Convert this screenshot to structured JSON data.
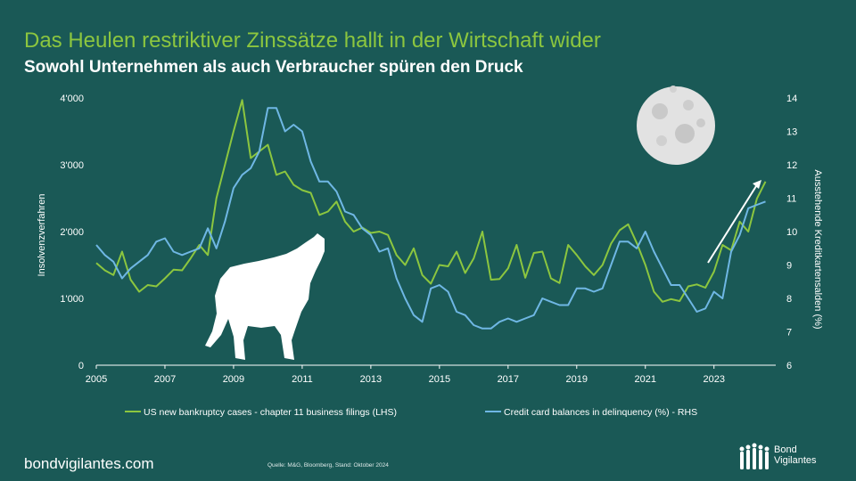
{
  "title": "Das Heulen restriktiver Zinssätze hallt in der Wirtschaft wider",
  "subtitle": "Sowohl Unternehmen als auch Verbraucher spüren den Druck",
  "footer": {
    "url": "bondvigilantes.com",
    "source": "Quelle: M&G, Bloomberg, Stand: Oktober 2024",
    "logo_line1": "Bond",
    "logo_line2": "Vigilantes"
  },
  "icons": [
    "wolf-icon",
    "moon-icon",
    "trend-arrow-icon",
    "logo-people-icon"
  ],
  "colors": {
    "background": "#1a5956",
    "green": "#8cc63f",
    "blue": "#6fb7e4"
  },
  "chart_data": {
    "type": "line",
    "xlabel": "",
    "ylabel_left": "Insolvenzverfahren",
    "ylabel_right": "Ausstehende Kreditkartensalden (%)",
    "ylim_left": [
      0,
      4000
    ],
    "ylim_right": [
      6,
      14
    ],
    "xlim": [
      2005,
      2024.8
    ],
    "x_ticks": [
      "2005",
      "2007",
      "2009",
      "2011",
      "2013",
      "2015",
      "2017",
      "2019",
      "2021",
      "2023"
    ],
    "y_ticks_left": [
      "0",
      "1'000",
      "2'000",
      "3'000",
      "4'000"
    ],
    "y_ticks_right": [
      "6",
      "7",
      "8",
      "9",
      "10",
      "11",
      "12",
      "13",
      "14"
    ],
    "series": [
      {
        "name": "US new bankruptcy cases - chapter 11 business filings (LHS)",
        "axis": "left",
        "x": [
          2005.0,
          2005.25,
          2005.5,
          2005.75,
          2006.0,
          2006.25,
          2006.5,
          2006.75,
          2007.0,
          2007.25,
          2007.5,
          2007.75,
          2008.0,
          2008.25,
          2008.5,
          2008.75,
          2009.0,
          2009.25,
          2009.5,
          2009.75,
          2010.0,
          2010.25,
          2010.5,
          2010.75,
          2011.0,
          2011.25,
          2011.5,
          2011.75,
          2012.0,
          2012.25,
          2012.5,
          2012.75,
          2013.0,
          2013.25,
          2013.5,
          2013.75,
          2014.0,
          2014.25,
          2014.5,
          2014.75,
          2015.0,
          2015.25,
          2015.5,
          2015.75,
          2016.0,
          2016.25,
          2016.5,
          2016.75,
          2017.0,
          2017.25,
          2017.5,
          2017.75,
          2018.0,
          2018.25,
          2018.5,
          2018.75,
          2019.0,
          2019.25,
          2019.5,
          2019.75,
          2020.0,
          2020.25,
          2020.5,
          2020.75,
          2021.0,
          2021.25,
          2021.5,
          2021.75,
          2022.0,
          2022.25,
          2022.5,
          2022.75,
          2023.0,
          2023.25,
          2023.5,
          2023.75,
          2024.0,
          2024.25,
          2024.5
        ],
        "values": [
          1530,
          1420,
          1350,
          1700,
          1280,
          1100,
          1200,
          1180,
          1300,
          1430,
          1420,
          1600,
          1800,
          1650,
          2500,
          3000,
          3500,
          3970,
          3100,
          3200,
          3300,
          2850,
          2900,
          2700,
          2620,
          2580,
          2250,
          2300,
          2450,
          2150,
          2000,
          2060,
          1980,
          2000,
          1950,
          1650,
          1500,
          1750,
          1350,
          1220,
          1500,
          1480,
          1700,
          1380,
          1600,
          2000,
          1280,
          1290,
          1450,
          1800,
          1310,
          1680,
          1700,
          1300,
          1230,
          1800,
          1650,
          1480,
          1350,
          1500,
          1820,
          2020,
          2110,
          1830,
          1500,
          1100,
          950,
          990,
          960,
          1180,
          1210,
          1160,
          1400,
          1800,
          1720,
          2150,
          2000,
          2490,
          2750
        ]
      },
      {
        "name": "Credit card balances in delinquency (%) - RHS",
        "axis": "right",
        "x": [
          2005.0,
          2005.25,
          2005.5,
          2005.75,
          2006.0,
          2006.25,
          2006.5,
          2006.75,
          2007.0,
          2007.25,
          2007.5,
          2007.75,
          2008.0,
          2008.25,
          2008.5,
          2008.75,
          2009.0,
          2009.25,
          2009.5,
          2009.75,
          2010.0,
          2010.25,
          2010.5,
          2010.75,
          2011.0,
          2011.25,
          2011.5,
          2011.75,
          2012.0,
          2012.25,
          2012.5,
          2012.75,
          2013.0,
          2013.25,
          2013.5,
          2013.75,
          2014.0,
          2014.25,
          2014.5,
          2014.75,
          2015.0,
          2015.25,
          2015.5,
          2015.75,
          2016.0,
          2016.25,
          2016.5,
          2016.75,
          2017.0,
          2017.25,
          2017.5,
          2017.75,
          2018.0,
          2018.25,
          2018.5,
          2018.75,
          2019.0,
          2019.25,
          2019.5,
          2019.75,
          2020.0,
          2020.25,
          2020.5,
          2020.75,
          2021.0,
          2021.25,
          2021.5,
          2021.75,
          2022.0,
          2022.25,
          2022.5,
          2022.75,
          2023.0,
          2023.25,
          2023.5,
          2023.75,
          2024.0,
          2024.25,
          2024.5
        ],
        "values": [
          9.6,
          9.3,
          9.1,
          8.6,
          8.9,
          9.1,
          9.3,
          9.7,
          9.8,
          9.4,
          9.3,
          9.4,
          9.5,
          10.1,
          9.5,
          10.3,
          11.3,
          11.7,
          11.9,
          12.4,
          13.7,
          13.7,
          13.0,
          13.2,
          13.0,
          12.1,
          11.5,
          11.5,
          11.2,
          10.6,
          10.5,
          10.1,
          9.9,
          9.4,
          9.5,
          8.6,
          8.0,
          7.5,
          7.3,
          8.3,
          8.4,
          8.2,
          7.6,
          7.5,
          7.2,
          7.1,
          7.1,
          7.3,
          7.4,
          7.3,
          7.4,
          7.5,
          8.0,
          7.9,
          7.8,
          7.8,
          8.3,
          8.3,
          8.2,
          8.3,
          9.0,
          9.7,
          9.7,
          9.5,
          10.0,
          9.4,
          8.9,
          8.4,
          8.4,
          8.0,
          7.6,
          7.7,
          8.2,
          8.0,
          9.4,
          9.9,
          10.7,
          10.8,
          10.9
        ]
      }
    ]
  }
}
